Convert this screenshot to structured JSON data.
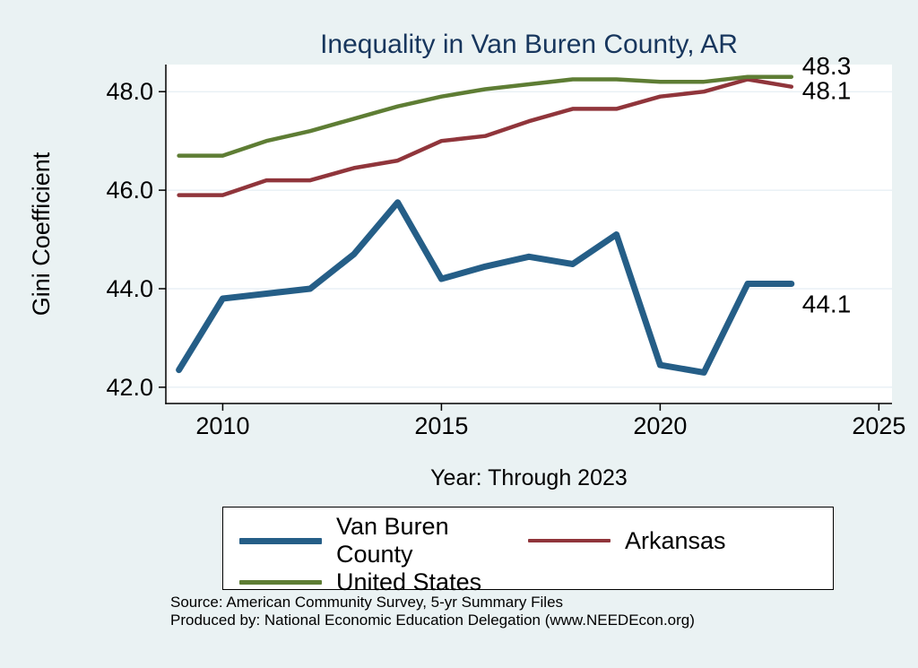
{
  "title": "Inequality in Van Buren County, AR",
  "chart_data": {
    "type": "line",
    "title": "Inequality in Van Buren County, AR",
    "xlabel": "Year: Through 2023",
    "ylabel": "Gini Coefficient",
    "x": [
      2009,
      2010,
      2011,
      2012,
      2013,
      2014,
      2015,
      2016,
      2017,
      2018,
      2019,
      2020,
      2021,
      2022,
      2023
    ],
    "series": [
      {
        "name": "Van Buren County",
        "color": "#255e87",
        "width": 7,
        "values": [
          42.35,
          43.8,
          43.9,
          44.0,
          44.7,
          45.75,
          44.2,
          44.45,
          44.65,
          44.5,
          45.1,
          42.45,
          42.3,
          44.1,
          44.1
        ]
      },
      {
        "name": "Arkansas",
        "color": "#90353b",
        "width": 4.5,
        "values": [
          45.9,
          45.9,
          46.2,
          46.2,
          46.45,
          46.6,
          47.0,
          47.1,
          47.4,
          47.65,
          47.65,
          47.9,
          48.0,
          48.25,
          48.1
        ]
      },
      {
        "name": "United States",
        "color": "#5e7d34",
        "width": 4.5,
        "values": [
          46.7,
          46.7,
          47.0,
          47.2,
          47.45,
          47.7,
          47.9,
          48.05,
          48.15,
          48.25,
          48.25,
          48.2,
          48.2,
          48.3,
          48.3
        ]
      }
    ],
    "xlim": [
      2008.7,
      2025.3
    ],
    "ylim": [
      41.67,
      48.55
    ],
    "xticks": [
      {
        "value": 2010,
        "label": "2010"
      },
      {
        "value": 2015,
        "label": "2015"
      },
      {
        "value": 2020,
        "label": "2020"
      },
      {
        "value": 2025,
        "label": "2025"
      }
    ],
    "yticks": [
      {
        "value": 42,
        "label": "42.0"
      },
      {
        "value": 44,
        "label": "44.0"
      },
      {
        "value": 46,
        "label": "46.0"
      },
      {
        "value": 48,
        "label": "48.0"
      }
    ],
    "grid": "horizontal-light",
    "legend_position": "bottom",
    "annotations": [
      {
        "text": "48.3",
        "x": 2023,
        "y": 48.52
      },
      {
        "text": "48.1",
        "x": 2023,
        "y": 48.02
      },
      {
        "text": "44.1",
        "x": 2023,
        "y": 43.69
      }
    ]
  },
  "legend": {
    "items": [
      {
        "label": "Van Buren County"
      },
      {
        "label": "Arkansas"
      },
      {
        "label": "United States"
      }
    ]
  },
  "source": {
    "line1": "Source: American Community Survey, 5-yr Summary Files",
    "line2": "Produced by: National Economic Education Delegation (www.NEEDEcon.org)"
  },
  "colors": {
    "page_background": "#eaf2f3",
    "plot_background": "#ffffff",
    "title_text": "#17365d",
    "axis": "#000000",
    "gridline": "#dfeaf0",
    "van_buren_county": "#255e87",
    "arkansas": "#90353b",
    "united_states": "#5e7d34"
  }
}
